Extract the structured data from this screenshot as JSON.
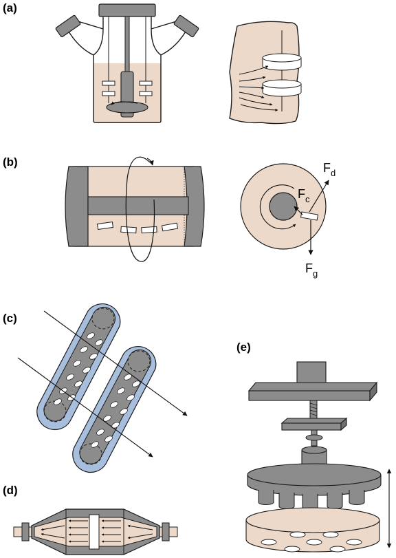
{
  "panels": {
    "a": {
      "label": "(a)"
    },
    "b": {
      "label": "(b)",
      "forces": {
        "drag": {
          "symbol": "F",
          "sub": "d"
        },
        "centripetal": {
          "symbol": "F",
          "sub": "c"
        },
        "gravity": {
          "symbol": "F",
          "sub": "g"
        }
      }
    },
    "c": {
      "label": "(c)"
    },
    "d": {
      "label": "(d)"
    },
    "e": {
      "label": "(e)"
    }
  },
  "colors": {
    "medium": "#ecd9c9",
    "metal": "#8c8c8c",
    "metal_dark": "#6f6f6f",
    "hollow_fiber": "#a8bedd",
    "outline": "#1a1a1a"
  }
}
